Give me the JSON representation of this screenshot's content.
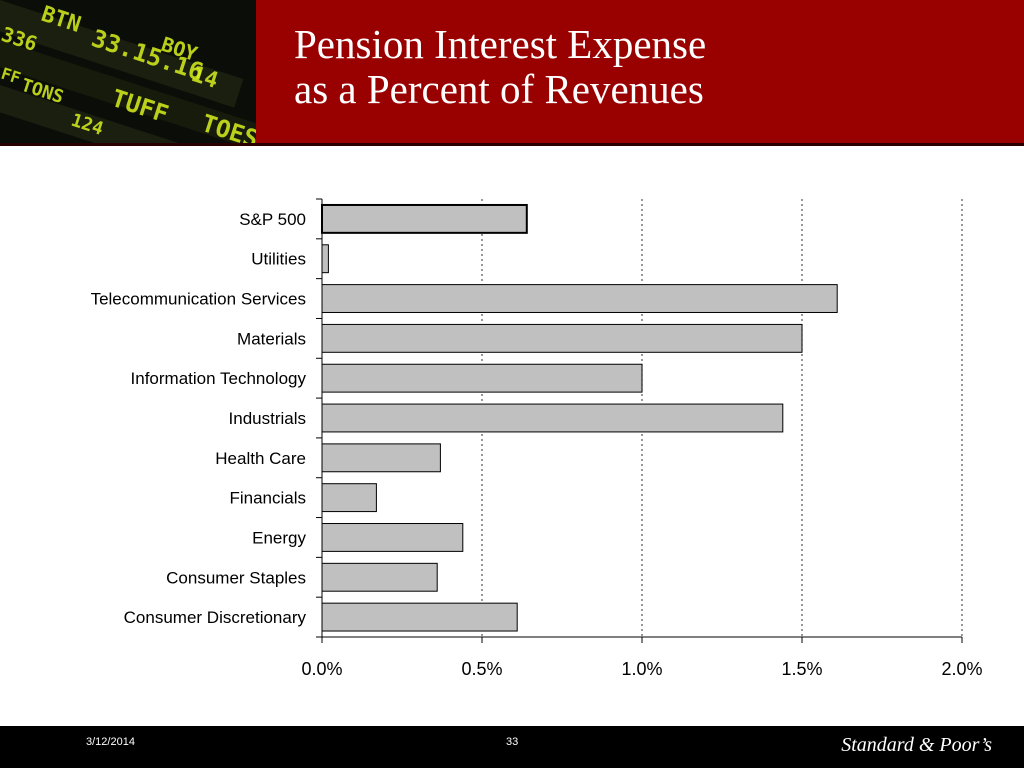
{
  "slide": {
    "title_line1": "Pension Interest Expense",
    "title_line2": "as a Percent of Revenues"
  },
  "colors": {
    "header_bg": "#990000",
    "bar_fill": "#c0c0c0",
    "bar_stroke": "#000000",
    "footer_bg": "#000000"
  },
  "header_photo": {
    "tickers": [
      "BTN",
      "33.15.16",
      "BOY",
      "TONS",
      "TUFF",
      "14",
      "124",
      "TOES",
      "336",
      "FF"
    ]
  },
  "chart_data": {
    "type": "bar",
    "orientation": "horizontal",
    "title": "",
    "xlabel": "",
    "ylabel": "",
    "categories": [
      "S&P 500",
      "Utilities",
      "Telecommunication Services",
      "Materials",
      "Information Technology",
      "Industrials",
      "Health Care",
      "Financials",
      "Energy",
      "Consumer Staples",
      "Consumer Discretionary"
    ],
    "values": [
      0.64,
      0.02,
      1.61,
      1.5,
      1.0,
      1.44,
      0.37,
      0.17,
      0.44,
      0.36,
      0.61
    ],
    "xlim": [
      0,
      2.0
    ],
    "xticks": [
      0,
      0.5,
      1.0,
      1.5,
      2.0
    ],
    "xtick_labels": [
      "0.0%",
      "0.5%",
      "1.0%",
      "1.5%",
      "2.0%"
    ],
    "grid": "vertical dotted",
    "legend": "none"
  },
  "footer": {
    "date": "3/12/2014",
    "page": "33",
    "brand": "Standard & Poor’s"
  }
}
